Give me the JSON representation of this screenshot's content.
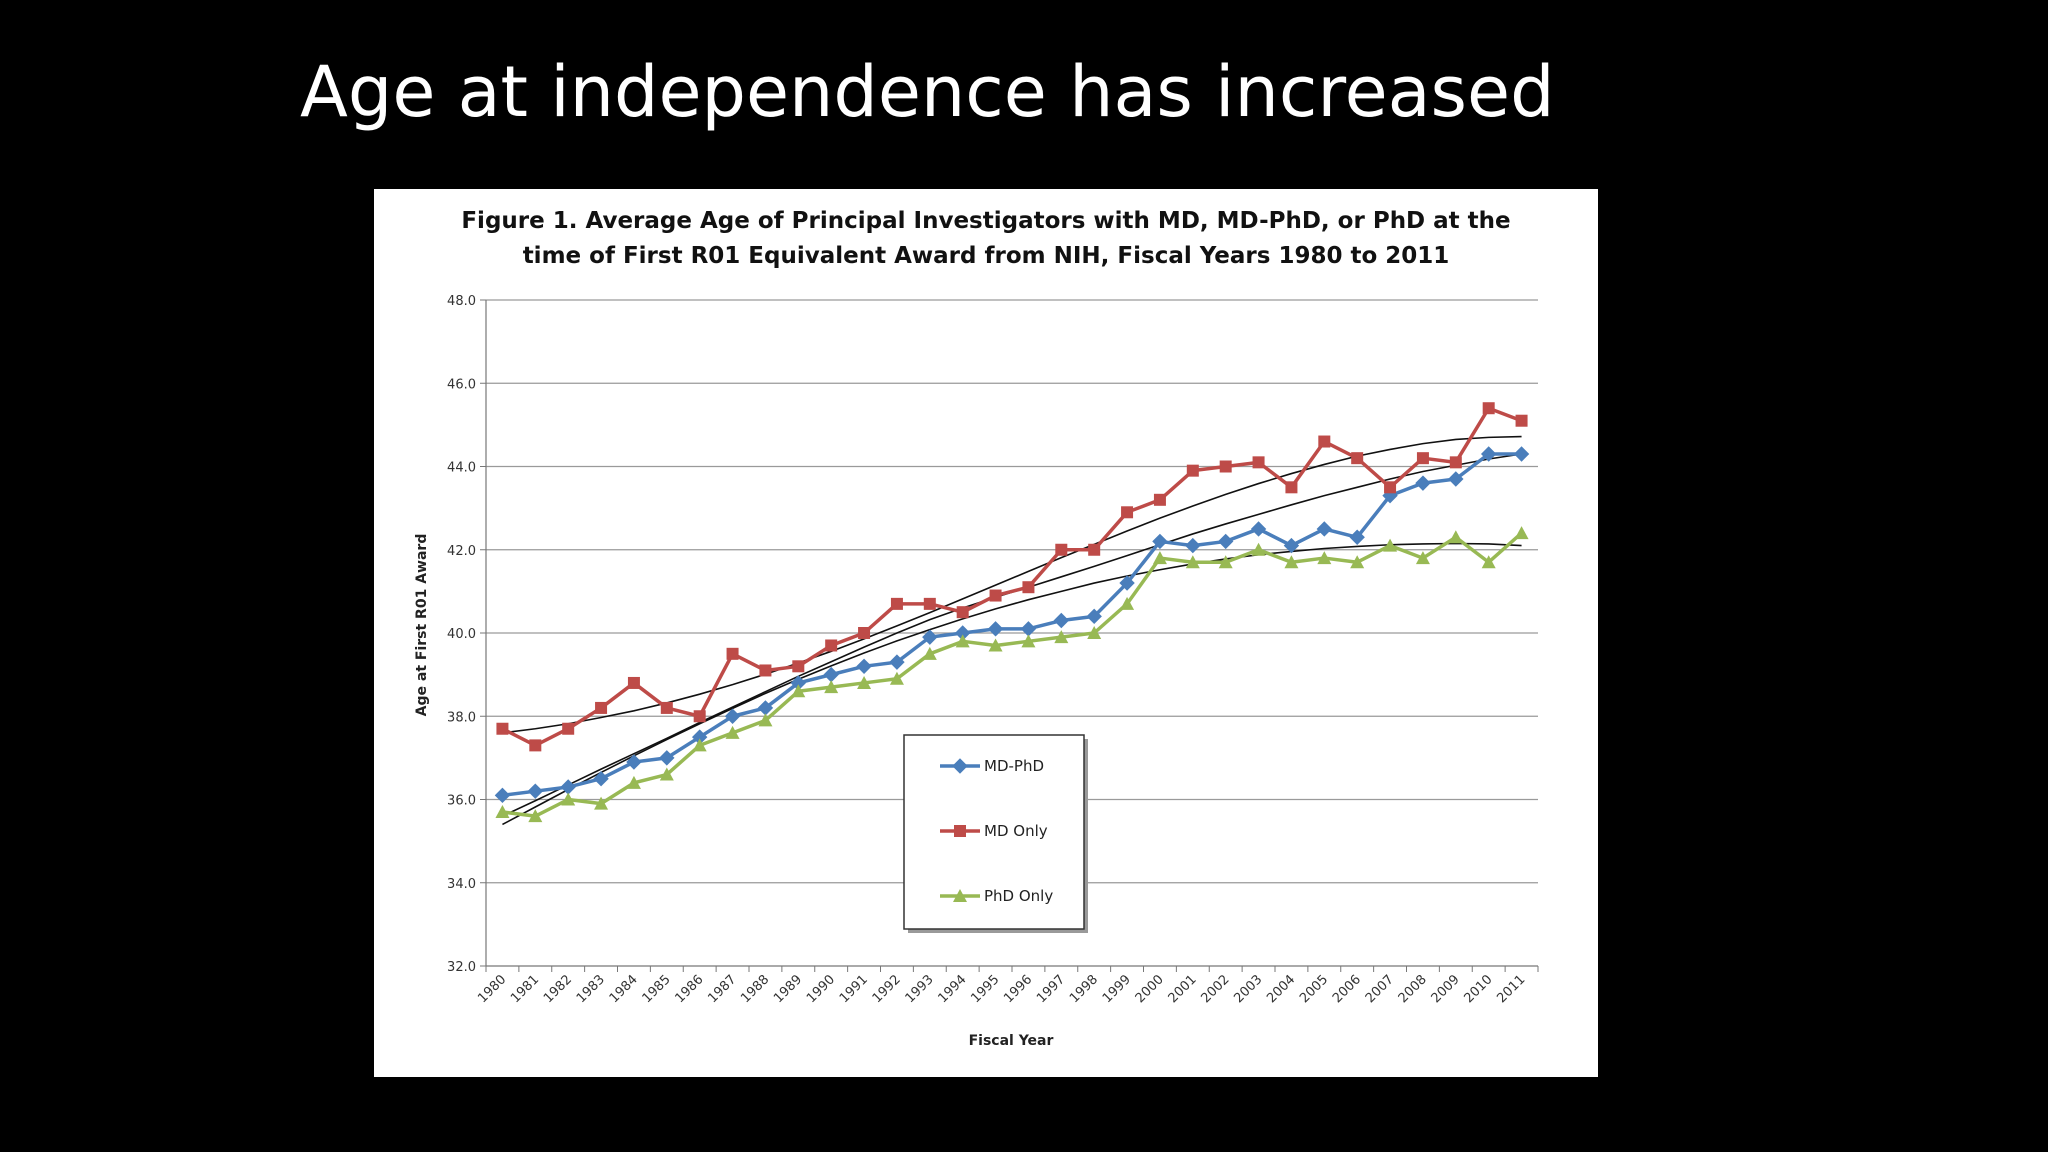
{
  "slide": {
    "title": "Age at independence has increased"
  },
  "chart_data": {
    "type": "line",
    "title_lines": [
      "Figure 1.   Average Age of Principal Investigators with MD, MD-PhD, or PhD at the",
      "time of First R01 Equivalent Award from NIH, Fiscal Years 1980 to 2011"
    ],
    "xlabel": "Fiscal Year",
    "ylabel": "Age at First R01 Award",
    "ylim": [
      32.0,
      48.0
    ],
    "yticks": [
      "32.0",
      "34.0",
      "36.0",
      "38.0",
      "40.0",
      "42.0",
      "44.0",
      "46.0",
      "48.0"
    ],
    "grid": true,
    "legend_position": "center-left, boxed",
    "categories": [
      "1980",
      "1981",
      "1982",
      "1983",
      "1984",
      "1985",
      "1986",
      "1987",
      "1988",
      "1989",
      "1990",
      "1991",
      "1992",
      "1993",
      "1994",
      "1995",
      "1996",
      "1997",
      "1998",
      "1999",
      "2000",
      "2001",
      "2002",
      "2003",
      "2004",
      "2005",
      "2006",
      "2007",
      "2008",
      "2009",
      "2010",
      "2011"
    ],
    "series": [
      {
        "name": "MD-PhD",
        "color": "#4a7ebb",
        "marker": "diamond",
        "values": [
          36.1,
          36.2,
          36.3,
          36.5,
          36.9,
          37.0,
          37.5,
          38.0,
          38.2,
          38.8,
          39.0,
          39.2,
          39.3,
          39.9,
          40.0,
          40.1,
          40.1,
          40.3,
          40.4,
          41.2,
          42.2,
          42.1,
          42.2,
          42.5,
          42.1,
          42.5,
          42.3,
          43.3,
          43.6,
          43.7,
          44.3,
          44.3
        ],
        "trend": [
          35.6,
          35.97,
          36.35,
          36.73,
          37.1,
          37.47,
          37.85,
          38.22,
          38.59,
          38.96,
          39.31,
          39.66,
          40.0,
          40.32,
          40.6,
          40.86,
          41.1,
          41.35,
          41.6,
          41.86,
          42.12,
          42.38,
          42.62,
          42.85,
          43.08,
          43.3,
          43.5,
          43.7,
          43.88,
          44.03,
          44.18,
          44.3
        ]
      },
      {
        "name": "MD Only",
        "color": "#be4b48",
        "marker": "square",
        "values": [
          37.7,
          37.3,
          37.7,
          38.2,
          38.8,
          38.2,
          38.0,
          39.5,
          39.1,
          39.2,
          39.7,
          40.0,
          40.7,
          40.7,
          40.5,
          40.9,
          41.1,
          42.0,
          42.0,
          42.9,
          43.2,
          43.9,
          44.0,
          44.1,
          43.5,
          44.6,
          44.2,
          43.5,
          44.2,
          44.1,
          45.4,
          45.1
        ],
        "trend": [
          37.6,
          37.7,
          37.82,
          37.97,
          38.13,
          38.32,
          38.53,
          38.76,
          39.01,
          39.28,
          39.56,
          39.86,
          40.17,
          40.49,
          40.82,
          41.15,
          41.48,
          41.81,
          42.13,
          42.45,
          42.76,
          43.05,
          43.33,
          43.59,
          43.83,
          44.05,
          44.25,
          44.41,
          44.55,
          44.65,
          44.7,
          44.72
        ]
      },
      {
        "name": "PhD Only",
        "color": "#98b954",
        "marker": "triangle",
        "values": [
          35.7,
          35.6,
          36.0,
          35.9,
          36.4,
          36.6,
          37.3,
          37.6,
          37.9,
          38.6,
          38.7,
          38.8,
          38.9,
          39.5,
          39.8,
          39.7,
          39.8,
          39.9,
          40.0,
          40.7,
          41.8,
          41.7,
          41.7,
          42.0,
          41.7,
          41.8,
          41.7,
          42.1,
          41.8,
          42.3,
          41.7,
          42.4
        ],
        "trend": [
          35.4,
          35.82,
          36.24,
          36.65,
          37.05,
          37.44,
          37.82,
          38.19,
          38.55,
          38.89,
          39.21,
          39.52,
          39.81,
          40.08,
          40.34,
          40.58,
          40.8,
          41.0,
          41.2,
          41.37,
          41.52,
          41.66,
          41.78,
          41.88,
          41.96,
          42.03,
          42.08,
          42.12,
          42.14,
          42.15,
          42.14,
          42.1
        ]
      }
    ]
  }
}
